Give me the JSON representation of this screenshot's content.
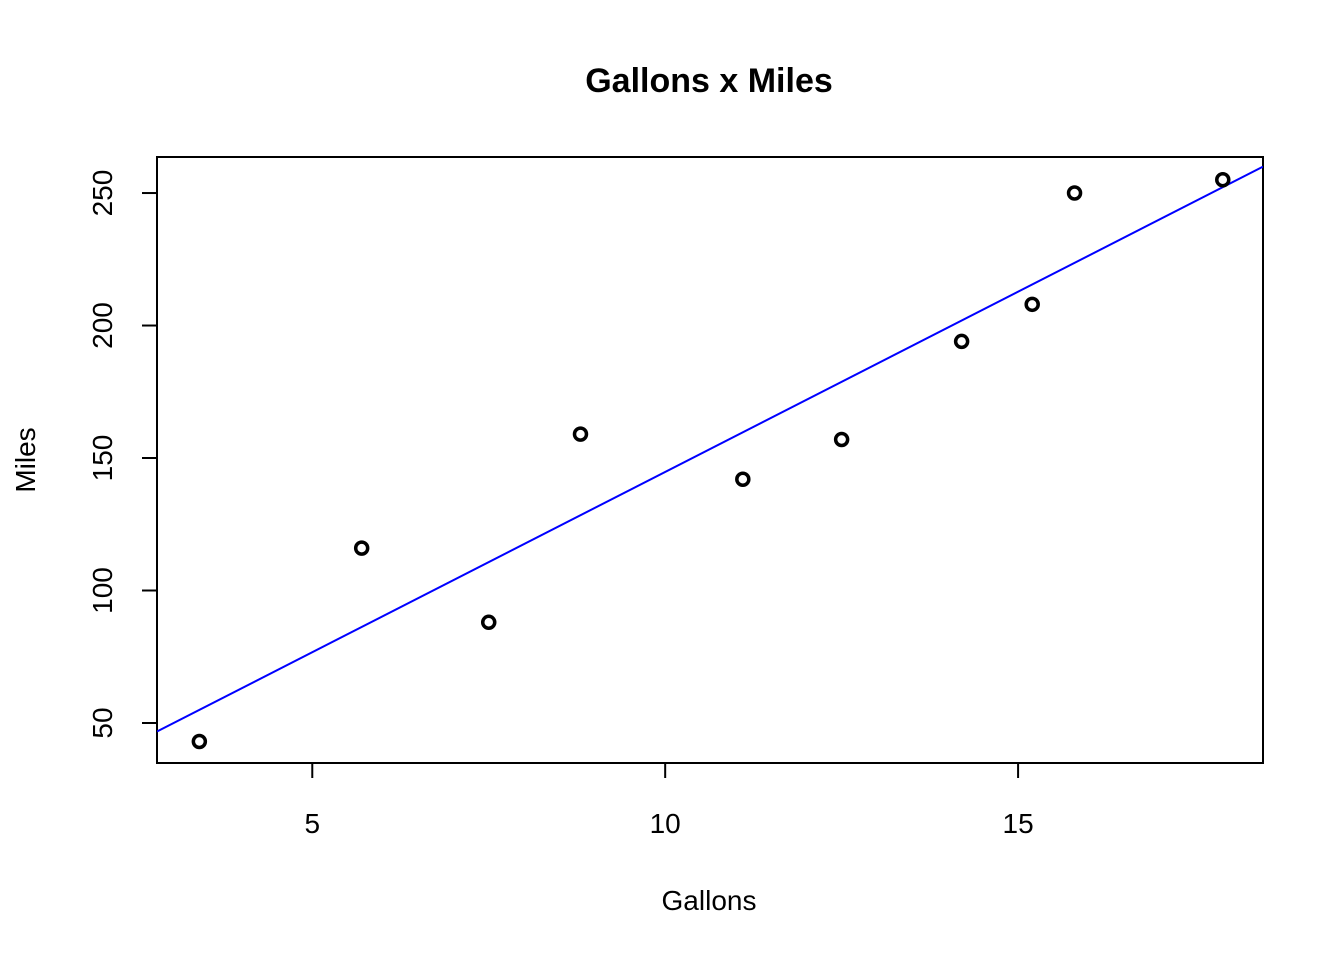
{
  "chart_data": {
    "type": "scatter",
    "title": "Gallons x Miles",
    "x_label": "Gallons",
    "y_label": "Miles",
    "x": [
      3.4,
      5.7,
      7.5,
      8.8,
      11.1,
      12.5,
      14.2,
      15.2,
      15.8,
      17.9
    ],
    "series": [
      {
        "name": "Miles",
        "color": "#000000",
        "values": [
          43,
          116,
          88,
          159,
          142,
          157,
          194,
          208,
          250,
          255
        ]
      }
    ],
    "trendline": {
      "type": "linear",
      "color": "#0000ff"
    },
    "xlim": [
      2.8,
      18.47
    ],
    "ylim": [
      34.9,
      263.6
    ],
    "xticks": [
      5,
      10,
      15
    ],
    "yticks": [
      50,
      100,
      150,
      200,
      250
    ],
    "grid": false
  }
}
